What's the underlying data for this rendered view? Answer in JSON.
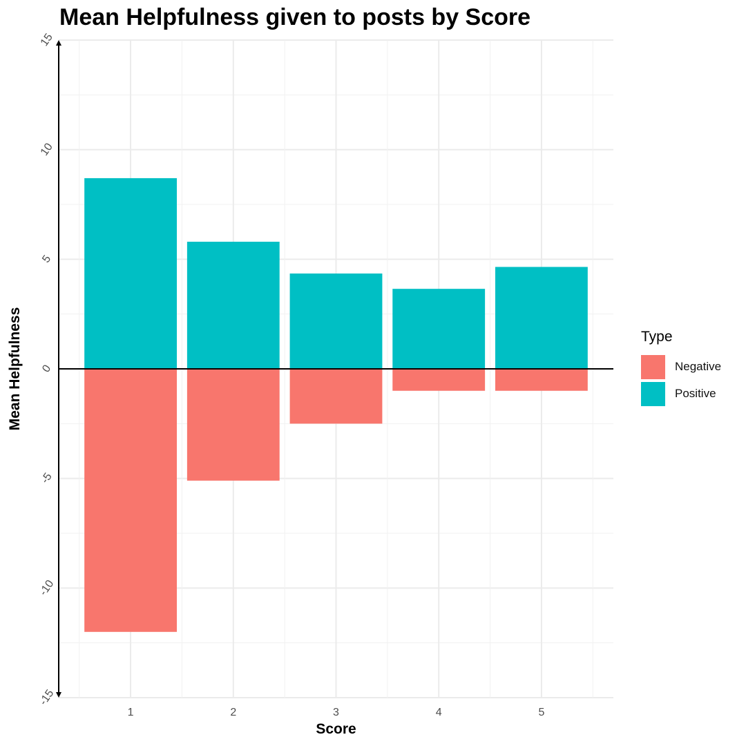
{
  "chart_data": {
    "type": "bar",
    "title": "Mean Helpfulness given to posts by Score",
    "xlabel": "Score",
    "ylabel": "Mean Helpfulness",
    "categories": [
      "1",
      "2",
      "3",
      "4",
      "5"
    ],
    "series": [
      {
        "name": "Positive",
        "color": "#00BFC4",
        "values": [
          8.7,
          5.8,
          4.35,
          3.65,
          4.65
        ]
      },
      {
        "name": "Negative",
        "color": "#F8766D",
        "values": [
          -12.0,
          -5.1,
          -2.5,
          -1.0,
          -1.0
        ]
      }
    ],
    "ylim": [
      -15,
      15
    ],
    "yticks": [
      "-15",
      "-10",
      "-5",
      "0",
      "5",
      "10",
      "15"
    ],
    "grid": true,
    "legend": {
      "title": "Type",
      "position": "right",
      "entries": [
        "Negative",
        "Positive"
      ]
    }
  }
}
